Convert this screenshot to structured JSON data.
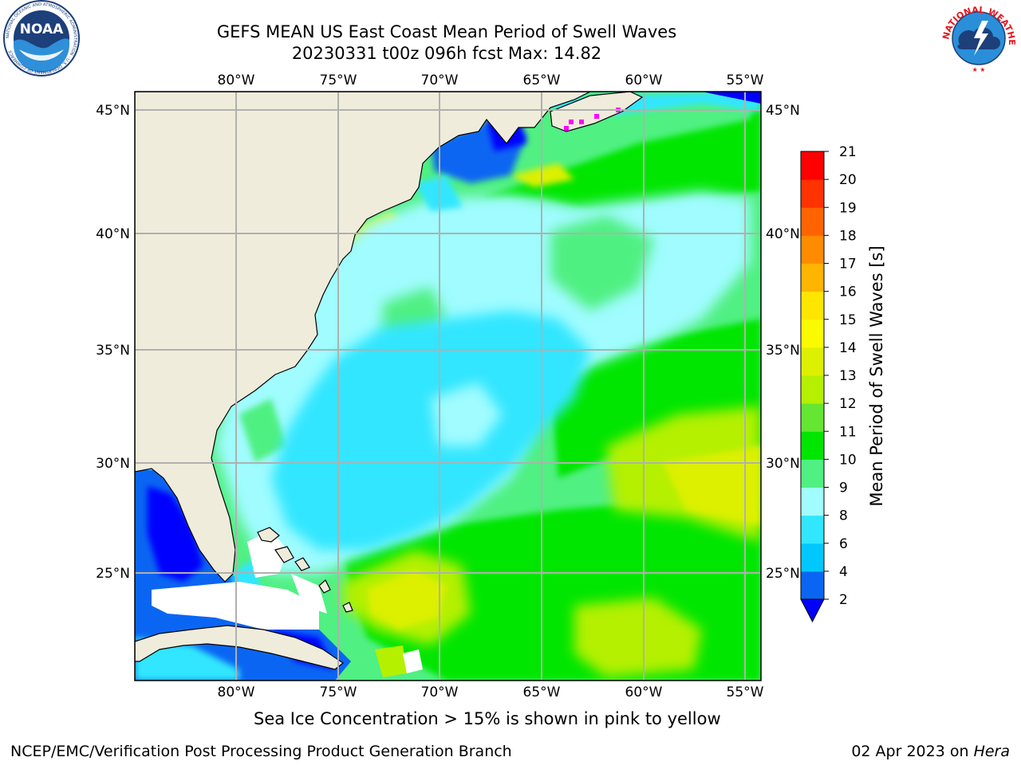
{
  "header": {
    "title_line1": "GEFS MEAN US East Coast Mean Period of Swell Waves",
    "title_line2": "20230331 t00z 096h fcst   Max: 14.82"
  },
  "logos": {
    "noaa_text": "NOAA",
    "noaa_ring": "NATIONAL OCEANIC AND ATMOSPHERIC ADMINISTRATION · U.S. DEPARTMENT OF COMMERCE",
    "nws_ring": "NATIONAL WEATHER SERVICE"
  },
  "map": {
    "lon_labels": [
      "80°W",
      "75°W",
      "70°W",
      "65°W",
      "60°W",
      "55°W"
    ],
    "lat_labels": [
      "45°N",
      "40°N",
      "35°N",
      "30°N",
      "25°N"
    ],
    "lon_range": [
      "85°W",
      "54.5°W"
    ],
    "lat_range": [
      "20.5°N",
      "45.8°N"
    ],
    "gridlines": true,
    "colors": {
      "land": "#efecdc",
      "ice_or_nodata": "#ffffff",
      "sea_ice_marker": "#ff00ff"
    }
  },
  "colorbar": {
    "label": "Mean Period of Swell Waves [s]",
    "ticks": [
      "2",
      "4",
      "6",
      "8",
      "9",
      "10",
      "11",
      "12",
      "13",
      "14",
      "15",
      "16",
      "17",
      "18",
      "19",
      "20",
      "21"
    ],
    "colors": [
      "#0a66f2",
      "#00c8ff",
      "#32e6ff",
      "#a0fcff",
      "#50f082",
      "#00e600",
      "#64e632",
      "#b4f000",
      "#dcf000",
      "#fafa00",
      "#ffe600",
      "#ffb400",
      "#ff8c00",
      "#ff6400",
      "#ff3200",
      "#ff0000"
    ],
    "under_color": "#0000ff"
  },
  "footer": {
    "note": "Sea Ice Concentration > 15% is shown in pink to yellow",
    "credit": "NCEP/EMC/Verification Post Processing Product Generation Branch",
    "date": "02 Apr 2023 on",
    "machine": "Hera"
  }
}
